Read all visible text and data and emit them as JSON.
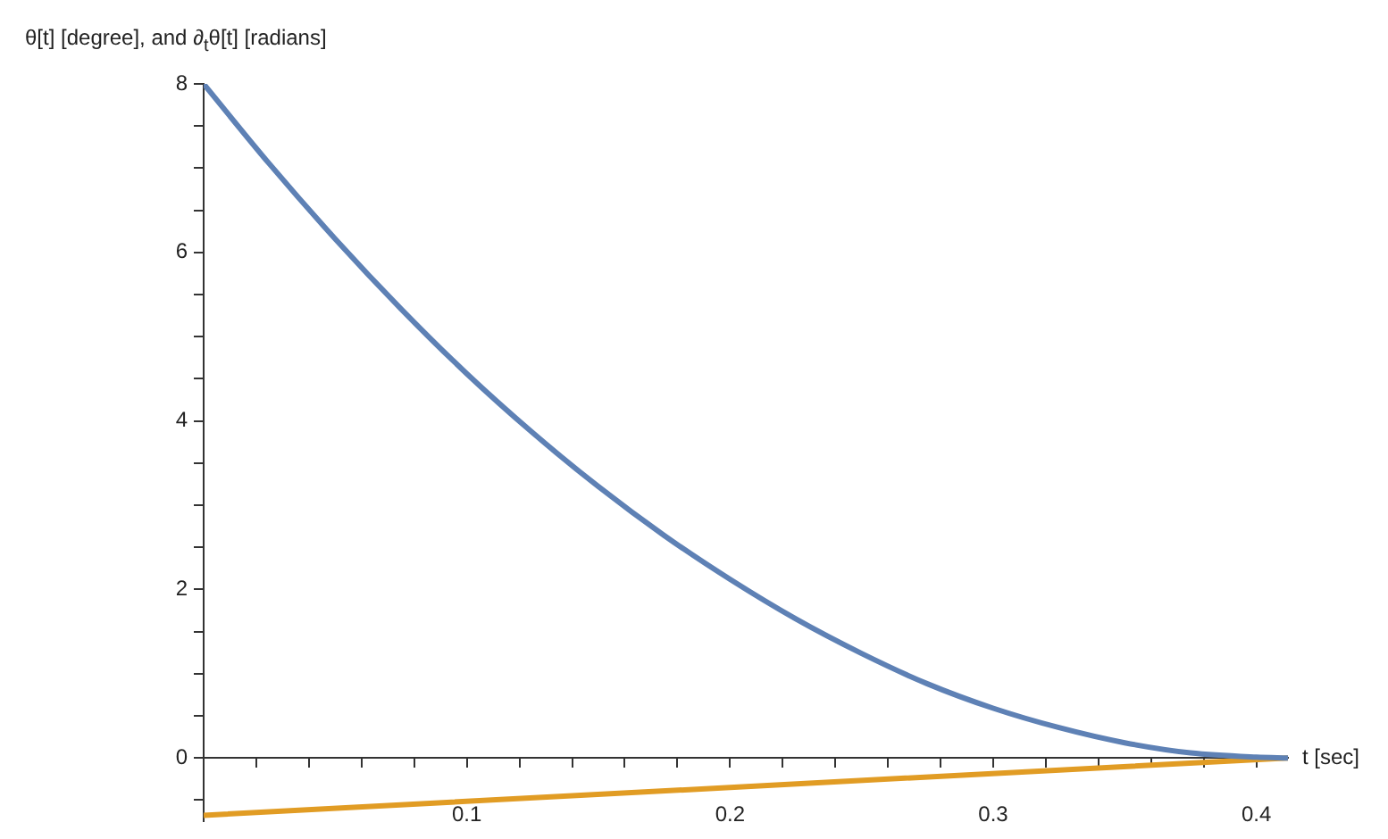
{
  "chart_data": {
    "type": "line",
    "xlabel": "t [sec]",
    "ylabel": "θ[t] [degree], and ∂$_{t}$θ[t] [radians]",
    "xlim": [
      0,
      0.412
    ],
    "ylim": [
      -0.75,
      8
    ],
    "xticks": [
      {
        "value": 0.02,
        "label": null
      },
      {
        "value": 0.04,
        "label": null
      },
      {
        "value": 0.06,
        "label": null
      },
      {
        "value": 0.08,
        "label": null
      },
      0.1,
      {
        "value": 0.12,
        "label": null
      },
      {
        "value": 0.14,
        "label": null
      },
      {
        "value": 0.16,
        "label": null
      },
      {
        "value": 0.18,
        "label": null
      },
      0.2,
      {
        "value": 0.22,
        "label": null
      },
      {
        "value": 0.24,
        "label": null
      },
      {
        "value": 0.26,
        "label": null
      },
      {
        "value": 0.28,
        "label": null
      },
      0.3,
      {
        "value": 0.32,
        "label": null
      },
      {
        "value": 0.34,
        "label": null
      },
      {
        "value": 0.36,
        "label": null
      },
      {
        "value": 0.38,
        "label": null
      },
      0.4
    ],
    "yticks": [
      {
        "value": -0.5,
        "label": null
      },
      0,
      {
        "value": 0.5,
        "label": null
      },
      {
        "value": 1,
        "label": null
      },
      {
        "value": 1.5,
        "label": null
      },
      2,
      {
        "value": 2.5,
        "label": null
      },
      {
        "value": 3,
        "label": null
      },
      {
        "value": 3.5,
        "label": null
      },
      4,
      {
        "value": 4.5,
        "label": null
      },
      {
        "value": 5,
        "label": null
      },
      {
        "value": 5.5,
        "label": null
      },
      6,
      {
        "value": 6.5,
        "label": null
      },
      {
        "value": 7,
        "label": null
      },
      {
        "value": 7.5,
        "label": null
      },
      8
    ],
    "grid": false,
    "legend": false,
    "marker": "none",
    "line_style": "solid",
    "series": [
      {
        "color": "#5e81b5",
        "x": [
          0,
          0.025,
          0.05,
          0.075,
          0.1,
          0.125,
          0.15,
          0.175,
          0.2,
          0.225,
          0.25,
          0.275,
          0.3,
          0.325,
          0.35,
          0.375,
          0.4,
          0.412
        ],
        "values": [
          8,
          7.05,
          6.16,
          5.33,
          4.56,
          3.86,
          3.22,
          2.64,
          2.12,
          1.65,
          1.24,
          0.88,
          0.59,
          0.36,
          0.18,
          0.06,
          0.01,
          0
        ]
      },
      {
        "color": "#e19c24",
        "x": [
          0,
          0.412
        ],
        "values": [
          -0.68,
          0
        ]
      }
    ]
  }
}
